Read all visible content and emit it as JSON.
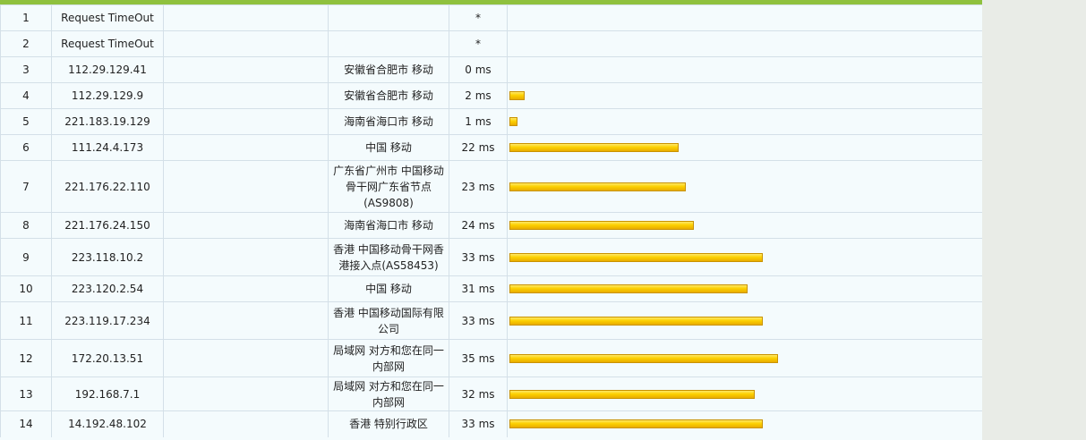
{
  "traceroute": {
    "max_ms": 35,
    "rows": [
      {
        "hop": "1",
        "ip": "Request TimeOut",
        "host": "",
        "location": "",
        "time": "*",
        "ms": null
      },
      {
        "hop": "2",
        "ip": "Request TimeOut",
        "host": "",
        "location": "",
        "time": "*",
        "ms": null
      },
      {
        "hop": "3",
        "ip": "112.29.129.41",
        "host": "",
        "location": "安徽省合肥市 移动",
        "time": "0 ms",
        "ms": 0
      },
      {
        "hop": "4",
        "ip": "112.29.129.9",
        "host": "",
        "location": "安徽省合肥市 移动",
        "time": "2 ms",
        "ms": 2
      },
      {
        "hop": "5",
        "ip": "221.183.19.129",
        "host": "",
        "location": "海南省海口市 移动",
        "time": "1 ms",
        "ms": 1
      },
      {
        "hop": "6",
        "ip": "111.24.4.173",
        "host": "",
        "location": "中国 移动",
        "time": "22 ms",
        "ms": 22
      },
      {
        "hop": "7",
        "ip": "221.176.22.110",
        "host": "",
        "location": "广东省广州市 中国移动骨干网广东省节点(AS9808)",
        "time": "23 ms",
        "ms": 23
      },
      {
        "hop": "8",
        "ip": "221.176.24.150",
        "host": "",
        "location": "海南省海口市 移动",
        "time": "24 ms",
        "ms": 24
      },
      {
        "hop": "9",
        "ip": "223.118.10.2",
        "host": "",
        "location": "香港 中国移动骨干网香港接入点(AS58453)",
        "time": "33 ms",
        "ms": 33
      },
      {
        "hop": "10",
        "ip": "223.120.2.54",
        "host": "",
        "location": "中国 移动",
        "time": "31 ms",
        "ms": 31
      },
      {
        "hop": "11",
        "ip": "223.119.17.234",
        "host": "",
        "location": "香港 中国移动国际有限公司",
        "time": "33 ms",
        "ms": 33
      },
      {
        "hop": "12",
        "ip": "172.20.13.51",
        "host": "",
        "location": "局域网 对方和您在同一内部网",
        "time": "35 ms",
        "ms": 35
      },
      {
        "hop": "13",
        "ip": "192.168.7.1",
        "host": "",
        "location": "局域网 对方和您在同一内部网",
        "time": "32 ms",
        "ms": 32
      },
      {
        "hop": "14",
        "ip": "14.192.48.102",
        "host": "",
        "location": "香港 特别行政区",
        "time": "33 ms",
        "ms": 33
      }
    ]
  },
  "colors": {
    "header_accent": "#8fc13e",
    "bar_fill": "#fcd000",
    "grid_line": "#d4e0e8"
  }
}
